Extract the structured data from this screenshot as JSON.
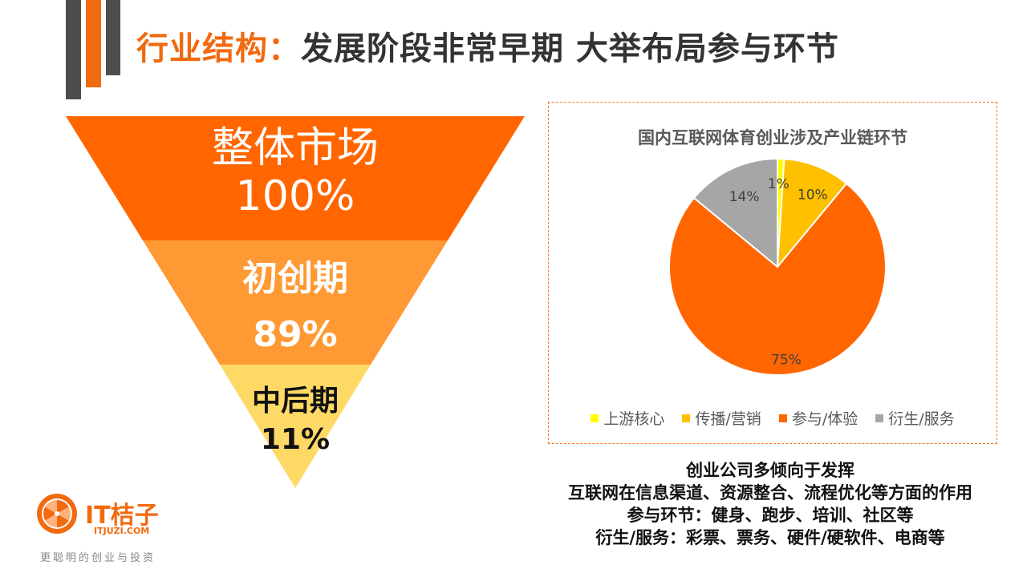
{
  "header": {
    "title_accent": "行业结构：",
    "title_main": "发展阶段非常早期 大举布局参与环节"
  },
  "funnel": {
    "levels": [
      {
        "name": "整体市场",
        "value": "100%",
        "color": "#FF6600"
      },
      {
        "name": "初创期",
        "value": "89%",
        "color": "#FF9933"
      },
      {
        "name": "中后期",
        "value": "11%",
        "color": "#FFD966"
      }
    ]
  },
  "chart_data": {
    "type": "pie",
    "title": "国内互联网体育创业涉及产业链环节",
    "categories": [
      "上游核心",
      "传播/营销",
      "参与/体验",
      "衍生/服务"
    ],
    "values": [
      1,
      10,
      75,
      14
    ],
    "labels": [
      "1%",
      "10%",
      "75%",
      "14%"
    ],
    "colors": [
      "#FFFF00",
      "#FFC000",
      "#FF6600",
      "#A6A6A6"
    ],
    "legend_position": "bottom"
  },
  "description": {
    "lines": [
      "创业公司多倾向于发挥",
      "互联网在信息渠道、资源整合、流程优化等方面的作用",
      "参与环节：健身、跑步、培训、社区等",
      "衍生/服务：彩票、票务、硬件/硬软件、电商等"
    ]
  },
  "brand": {
    "logo_text": "IT桔子",
    "logo_sub": "ITJUZI.COM",
    "slogan": "更聪明的创业与投资"
  },
  "theme": {
    "accent": "#F26A10",
    "deco_gray": "#4D4D4D"
  }
}
